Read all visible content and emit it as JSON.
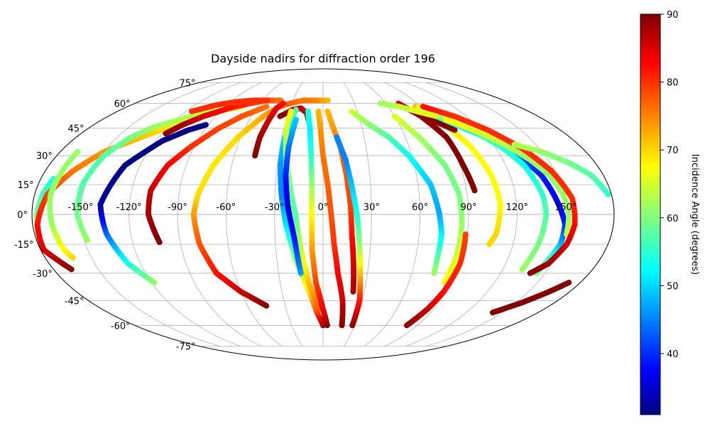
{
  "chart_data": {
    "type": "scatter",
    "projection": "mollweide",
    "title": "Dayside nadirs for diffraction order 196",
    "xlabel": "",
    "ylabel": "",
    "grid": true,
    "xlim": [
      -180,
      180
    ],
    "ylim": [
      -90,
      90
    ],
    "lon_ticks": [
      -150,
      -120,
      -90,
      -60,
      -30,
      0,
      30,
      60,
      90,
      120,
      150
    ],
    "lon_tick_labels": [
      "-150°",
      "-120°",
      "-90°",
      "-60°",
      "-30°",
      "0°",
      "30°",
      "60°",
      "90°",
      "120°",
      "150°"
    ],
    "lat_ticks": [
      75,
      60,
      45,
      30,
      15,
      0,
      -15,
      -30,
      -45,
      -60,
      -75
    ],
    "lat_tick_labels": [
      "75°",
      "60°",
      "45°",
      "30°",
      "15°",
      "0°",
      "-15°",
      "-30°",
      "-45°",
      "-60°",
      "-75°"
    ],
    "colorbar": {
      "label": "Incidence Angle (degrees)",
      "colormap": "jet",
      "range": [
        31,
        90
      ],
      "ticks": [
        40,
        50,
        60,
        70,
        80,
        90
      ],
      "tick_labels": [
        "40",
        "50",
        "60",
        "70",
        "80",
        "90"
      ]
    },
    "series": [
      {
        "points": [
          [
            -178,
            -14,
            62
          ],
          [
            -177,
            0,
            60
          ],
          [
            -175,
            10,
            57
          ],
          [
            -172,
            18,
            55
          ]
        ]
      },
      {
        "points": [
          [
            -168,
            -28,
            90
          ],
          [
            -178,
            -18,
            85
          ],
          [
            -177,
            -5,
            82
          ],
          [
            -172,
            10,
            79
          ],
          [
            -162,
            22,
            76
          ],
          [
            -150,
            32,
            74
          ],
          [
            -137,
            38,
            72
          ],
          [
            -123,
            44,
            70
          ],
          [
            -108,
            50,
            68
          ],
          [
            -92,
            55,
            67
          ],
          [
            -74,
            58,
            66
          ]
        ]
      },
      {
        "points": [
          [
            -168,
            32,
            62
          ],
          [
            -170,
            10,
            62
          ],
          [
            -168,
            -5,
            62
          ],
          [
            -165,
            -18,
            68
          ],
          [
            -162,
            -22,
            70
          ]
        ]
      },
      {
        "points": [
          [
            -148,
            -13,
            62
          ],
          [
            -152,
            0,
            60
          ],
          [
            -152,
            15,
            58
          ],
          [
            -148,
            30,
            58
          ],
          [
            -140,
            40,
            60
          ],
          [
            -130,
            46,
            62
          ],
          [
            -110,
            52,
            64
          ],
          [
            -95,
            55,
            66
          ]
        ]
      },
      {
        "points": [
          [
            -118,
            -35,
            62
          ],
          [
            -128,
            -25,
            55
          ],
          [
            -135,
            -10,
            45
          ],
          [
            -138,
            5,
            33
          ],
          [
            -130,
            25,
            31
          ],
          [
            -115,
            38,
            31
          ],
          [
            -102,
            44,
            31
          ],
          [
            -92,
            47,
            31
          ]
        ]
      },
      {
        "points": [
          [
            -103,
            -14,
            90
          ],
          [
            -108,
            0,
            88
          ],
          [
            -108,
            12,
            86
          ],
          [
            -102,
            25,
            83
          ],
          [
            -92,
            35,
            80
          ],
          [
            -80,
            45,
            79
          ],
          [
            -68,
            52,
            78
          ],
          [
            -52,
            58,
            76
          ]
        ]
      },
      {
        "points": [
          [
            -117,
            42,
            90
          ],
          [
            -110,
            47,
            88
          ],
          [
            -100,
            52,
            85
          ],
          [
            -85,
            57,
            82
          ],
          [
            -70,
            60,
            80
          ],
          [
            -55,
            62,
            78
          ],
          [
            -42,
            62,
            76
          ]
        ]
      },
      {
        "points": [
          [
            -115,
            55,
            80
          ],
          [
            -100,
            59,
            80
          ],
          [
            -85,
            61,
            80
          ],
          [
            -70,
            62,
            80
          ],
          [
            -55,
            62,
            80
          ]
        ]
      },
      {
        "points": [
          [
            -45,
            -48,
            90
          ],
          [
            -60,
            -40,
            86
          ],
          [
            -72,
            -30,
            82
          ],
          [
            -78,
            -15,
            78
          ],
          [
            -80,
            0,
            74
          ],
          [
            -78,
            10,
            70
          ],
          [
            -72,
            25,
            69
          ],
          [
            -62,
            40,
            70
          ],
          [
            -50,
            52,
            73
          ],
          [
            -40,
            58,
            76
          ],
          [
            -32,
            60,
            77
          ],
          [
            -20,
            62,
            76
          ],
          [
            -5,
            62,
            75
          ],
          [
            5,
            62,
            72
          ]
        ]
      },
      {
        "points": [
          [
            -46,
            30,
            90
          ],
          [
            -46,
            40,
            88
          ],
          [
            -44,
            50,
            86
          ],
          [
            -42,
            57,
            84
          ],
          [
            -38,
            60,
            82
          ]
        ]
      },
      {
        "points": [
          [
            -36,
            52,
            90
          ],
          [
            -27,
            56,
            88
          ],
          [
            -20,
            57,
            87
          ],
          [
            -14,
            54,
            86
          ],
          [
            -12,
            50,
            85
          ]
        ]
      },
      {
        "points": [
          [
            0,
            -60,
            90
          ],
          [
            -5,
            -52,
            80
          ],
          [
            -10,
            -40,
            70
          ],
          [
            -17,
            -25,
            62
          ],
          [
            -23,
            -5,
            52
          ],
          [
            -26,
            10,
            46
          ],
          [
            -28,
            25,
            47
          ],
          [
            -28,
            38,
            50
          ],
          [
            -26,
            50,
            55
          ],
          [
            -24,
            56,
            58
          ]
        ]
      },
      {
        "points": [
          [
            -3,
            -50,
            78
          ],
          [
            -10,
            -35,
            72
          ],
          [
            -14,
            -18,
            65
          ],
          [
            -17,
            0,
            58
          ],
          [
            -21,
            15,
            60
          ],
          [
            -25,
            30,
            62
          ],
          [
            -28,
            45,
            65
          ],
          [
            -28,
            55,
            68
          ]
        ]
      },
      {
        "points": [
          [
            -15,
            -30,
            48
          ],
          [
            -18,
            -12,
            40
          ],
          [
            -22,
            5,
            36
          ],
          [
            -24,
            20,
            40
          ],
          [
            -24,
            35,
            45
          ],
          [
            -22,
            50,
            50
          ]
        ]
      },
      {
        "points": [
          [
            4,
            -60,
            90
          ],
          [
            0,
            -50,
            84
          ],
          [
            -5,
            -35,
            79
          ],
          [
            -7,
            -18,
            74
          ],
          [
            -7,
            0,
            68
          ],
          [
            -7,
            15,
            62
          ],
          [
            -8,
            30,
            56
          ],
          [
            -10,
            45,
            52
          ],
          [
            -13,
            55,
            55
          ]
        ]
      },
      {
        "points": [
          [
            18,
            -60,
            90
          ],
          [
            15,
            -45,
            86
          ],
          [
            10,
            -30,
            83
          ],
          [
            7,
            -15,
            80
          ],
          [
            5,
            0,
            78
          ],
          [
            3,
            15,
            77
          ],
          [
            0,
            30,
            76
          ],
          [
            -2,
            45,
            74
          ],
          [
            -4,
            55,
            72
          ]
        ]
      },
      {
        "points": [
          [
            22,
            -40,
            88
          ],
          [
            20,
            -25,
            85
          ],
          [
            18,
            -10,
            82
          ],
          [
            17,
            5,
            79
          ],
          [
            15,
            20,
            78
          ],
          [
            12,
            35,
            76
          ],
          [
            8,
            45,
            74
          ],
          [
            4,
            55,
            72
          ]
        ]
      },
      {
        "points": [
          [
            28,
            -60,
            90
          ],
          [
            28,
            -45,
            82
          ],
          [
            25,
            -30,
            72
          ],
          [
            23,
            -15,
            62
          ],
          [
            21,
            0,
            55
          ],
          [
            18,
            15,
            50
          ],
          [
            15,
            28,
            46
          ],
          [
            10,
            40,
            46
          ]
        ]
      },
      {
        "points": [
          [
            25,
            55,
            65
          ],
          [
            35,
            48,
            62
          ],
          [
            48,
            40,
            58
          ],
          [
            58,
            30,
            54
          ],
          [
            68,
            15,
            50
          ],
          [
            72,
            0,
            48
          ],
          [
            74,
            -10,
            52
          ],
          [
            74,
            -22,
            58
          ],
          [
            75,
            -30,
            62
          ]
        ]
      },
      {
        "points": [
          [
            60,
            52,
            66
          ],
          [
            70,
            40,
            63
          ],
          [
            80,
            25,
            60
          ],
          [
            85,
            10,
            60
          ],
          [
            86,
            -5,
            62
          ],
          [
            86,
            -20,
            65
          ],
          [
            85,
            -35,
            68
          ]
        ]
      },
      {
        "points": [
          [
            80,
            -60,
            90
          ],
          [
            85,
            -50,
            86
          ],
          [
            88,
            -40,
            82
          ],
          [
            90,
            -25,
            80
          ],
          [
            89,
            -10,
            79
          ]
        ]
      },
      {
        "points": [
          [
            72,
            60,
            85
          ],
          [
            82,
            52,
            88
          ],
          [
            90,
            40,
            90
          ],
          [
            92,
            25,
            90
          ],
          [
            95,
            12,
            90
          ]
        ]
      },
      {
        "points": [
          [
            85,
            58,
            72
          ],
          [
            95,
            48,
            70
          ],
          [
            103,
            35,
            68
          ],
          [
            108,
            20,
            68
          ],
          [
            110,
            5,
            68
          ],
          [
            108,
            -10,
            70
          ],
          [
            105,
            -15,
            70
          ]
        ]
      },
      {
        "points": [
          [
            72,
            58,
            88
          ],
          [
            80,
            55,
            90
          ],
          [
            92,
            48,
            90
          ],
          [
            100,
            44,
            90
          ]
        ]
      },
      {
        "points": [
          [
            95,
            52,
            56
          ],
          [
            110,
            44,
            52
          ],
          [
            122,
            38,
            48
          ],
          [
            132,
            30,
            44
          ],
          [
            140,
            20,
            40
          ],
          [
            146,
            5,
            38
          ],
          [
            150,
            -5,
            40
          ],
          [
            150,
            -15,
            48
          ],
          [
            147,
            -22,
            55
          ],
          [
            144,
            -30,
            60
          ]
        ]
      },
      {
        "points": [
          [
            88,
            58,
            66
          ],
          [
            102,
            50,
            62
          ],
          [
            115,
            42,
            58
          ],
          [
            125,
            34,
            56
          ],
          [
            132,
            25,
            54
          ],
          [
            137,
            10,
            56
          ],
          [
            138,
            0,
            58
          ],
          [
            136,
            -15,
            60
          ],
          [
            133,
            -28,
            62
          ]
        ]
      },
      {
        "points": [
          [
            100,
            50,
            68
          ],
          [
            115,
            44,
            66
          ],
          [
            128,
            36,
            64
          ],
          [
            138,
            28,
            62
          ],
          [
            145,
            20,
            62
          ],
          [
            150,
            10,
            62
          ],
          [
            152,
            0,
            62
          ],
          [
            152,
            -10,
            64
          ]
        ]
      },
      {
        "points": [
          [
            92,
            58,
            82
          ],
          [
            110,
            52,
            80
          ],
          [
            125,
            44,
            80
          ],
          [
            138,
            34,
            80
          ],
          [
            148,
            22,
            80
          ],
          [
            155,
            8,
            80
          ],
          [
            156,
            -5,
            82
          ],
          [
            154,
            -15,
            85
          ],
          [
            148,
            -25,
            88
          ],
          [
            140,
            -30,
            90
          ]
        ]
      },
      {
        "points": [
          [
            135,
            36,
            64
          ],
          [
            150,
            32,
            62
          ],
          [
            163,
            26,
            60
          ],
          [
            172,
            20,
            58
          ],
          [
            178,
            10,
            56
          ]
        ]
      },
      {
        "points": [
          [
            142,
            -52,
            90
          ],
          [
            155,
            -46,
            90
          ],
          [
            165,
            -40,
            90
          ],
          [
            172,
            -35,
            90
          ]
        ]
      },
      {
        "points": [
          [
            55,
            60,
            62
          ],
          [
            70,
            58,
            64
          ],
          [
            82,
            55,
            66
          ],
          [
            95,
            52,
            66
          ]
        ]
      }
    ]
  }
}
